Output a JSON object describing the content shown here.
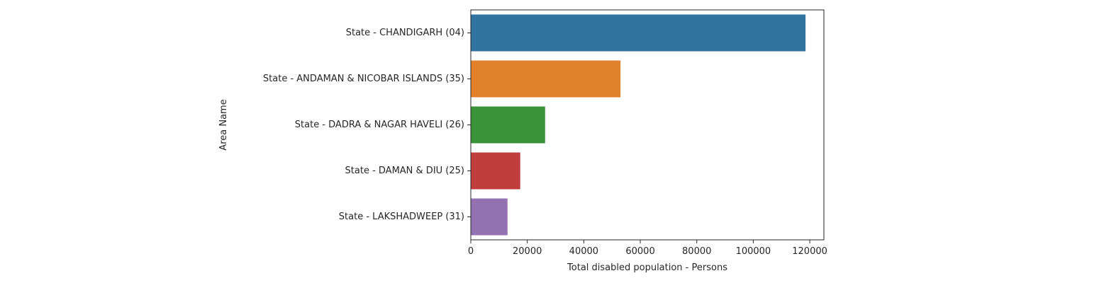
{
  "chart_data": {
    "type": "bar",
    "orientation": "horizontal",
    "title": "",
    "xlabel": "Total disabled population - Persons",
    "ylabel": "Area Name",
    "categories": [
      "State - CHANDIGARH (04)",
      "State - ANDAMAN & NICOBAR ISLANDS (35)",
      "State - DADRA & NAGAR HAVELI (26)",
      "State - DAMAN & DIU (25)",
      "State - LAKSHADWEEP (31)"
    ],
    "values": [
      118500,
      53000,
      26300,
      17500,
      13000
    ],
    "colors": [
      "#3274a1",
      "#e1812c",
      "#3a923a",
      "#c03d3e",
      "#9372b2"
    ],
    "xlim": [
      0,
      125000
    ],
    "xticks": [
      0,
      20000,
      40000,
      60000,
      80000,
      100000,
      120000
    ],
    "xtick_labels": [
      "0",
      "20000",
      "40000",
      "60000",
      "80000",
      "100000",
      "120000"
    ],
    "grid": false,
    "legend": "none"
  }
}
